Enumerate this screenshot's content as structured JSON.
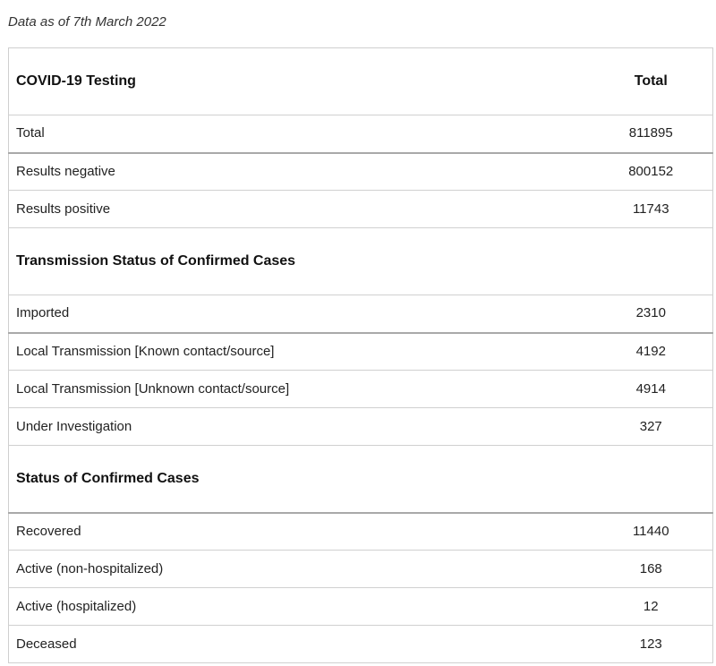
{
  "note": "Data as of 7th March 2022",
  "table": {
    "header": {
      "label": "COVID-19 Testing",
      "value": "Total"
    },
    "testing": [
      {
        "label": "Total",
        "value": "811895"
      },
      {
        "label": "Results negative",
        "value": "800152"
      },
      {
        "label": "Results positive",
        "value": "11743"
      }
    ],
    "transmission_title": "Transmission Status of Confirmed Cases",
    "transmission": [
      {
        "label": "Imported",
        "value": "2310"
      },
      {
        "label": "Local Transmission [Known contact/source]",
        "value": "4192"
      },
      {
        "label": "Local Transmission [Unknown contact/source]",
        "value": "4914"
      },
      {
        "label": "Under Investigation",
        "value": "327"
      }
    ],
    "status_title": "Status of Confirmed Cases",
    "status": [
      {
        "label": "Recovered",
        "value": "11440"
      },
      {
        "label": "Active (non-hospitalized)",
        "value": "168"
      },
      {
        "label": "Active (hospitalized)",
        "value": "12"
      },
      {
        "label": "Deceased",
        "value": "123"
      }
    ]
  }
}
